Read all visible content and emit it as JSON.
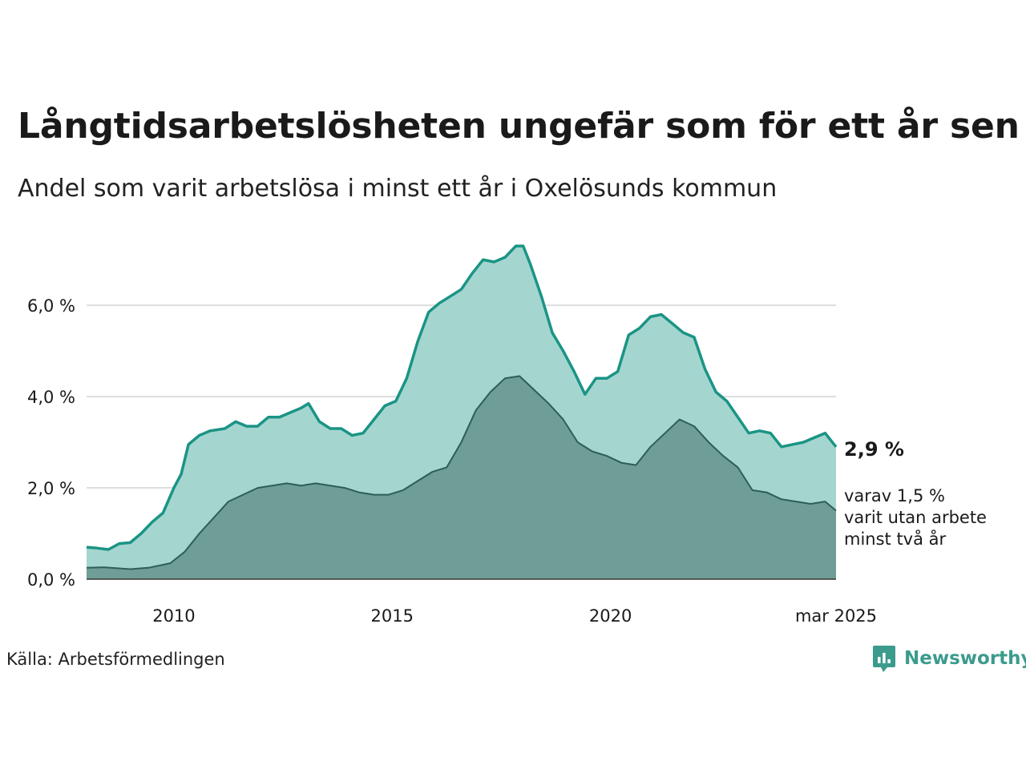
{
  "title": "Långtidsarbetslösheten ungefär som för ett år sen",
  "subtitle": "Andel som varit arbetslösa i minst ett år i Oxelösunds kommun",
  "source": "Källa: Arbetsförmedlingen",
  "brand": {
    "name": "Newsworthy",
    "icon": "newsworthy-logo-icon"
  },
  "colors": {
    "main_line": "#1a9485",
    "main_fill": "#a4d6cf",
    "sub_line": "#2e5e55",
    "sub_fill": "#6f9e96",
    "grid": "#dddddd",
    "text": "#1a1a1a"
  },
  "chart_data": {
    "type": "area",
    "x_start": "2008-01",
    "x_end": "2025-03",
    "frequency": "monthly",
    "ylim": [
      0,
      7.6
    ],
    "grid": "horizontal",
    "y_ticks": [
      {
        "value": 0,
        "label": "0,0 %"
      },
      {
        "value": 2,
        "label": "2,0 %"
      },
      {
        "value": 4,
        "label": "4,0 %"
      },
      {
        "value": 6,
        "label": "6,0 %"
      }
    ],
    "x_ticks": [
      {
        "date": "2010-01",
        "label": "2010"
      },
      {
        "date": "2015-01",
        "label": "2015"
      },
      {
        "date": "2020-01",
        "label": "2020"
      },
      {
        "date": "2025-03",
        "label": "mar 2025"
      }
    ],
    "series": [
      {
        "key": "total",
        "points": [
          [
            "2008-01",
            0.7
          ],
          [
            "2008-04",
            0.68
          ],
          [
            "2008-07",
            0.65
          ],
          [
            "2008-10",
            0.78
          ],
          [
            "2009-01",
            0.8
          ],
          [
            "2009-04",
            1.0
          ],
          [
            "2009-07",
            1.25
          ],
          [
            "2009-10",
            1.45
          ],
          [
            "2010-01",
            2.0
          ],
          [
            "2010-03",
            2.3
          ],
          [
            "2010-05",
            2.95
          ],
          [
            "2010-08",
            3.15
          ],
          [
            "2010-11",
            3.25
          ],
          [
            "2011-03",
            3.3
          ],
          [
            "2011-06",
            3.45
          ],
          [
            "2011-09",
            3.35
          ],
          [
            "2011-12",
            3.35
          ],
          [
            "2012-03",
            3.55
          ],
          [
            "2012-06",
            3.55
          ],
          [
            "2012-09",
            3.65
          ],
          [
            "2012-12",
            3.75
          ],
          [
            "2013-02",
            3.85
          ],
          [
            "2013-05",
            3.45
          ],
          [
            "2013-08",
            3.3
          ],
          [
            "2013-11",
            3.3
          ],
          [
            "2014-02",
            3.15
          ],
          [
            "2014-05",
            3.2
          ],
          [
            "2014-08",
            3.5
          ],
          [
            "2014-11",
            3.8
          ],
          [
            "2015-02",
            3.9
          ],
          [
            "2015-05",
            4.4
          ],
          [
            "2015-08",
            5.2
          ],
          [
            "2015-11",
            5.85
          ],
          [
            "2016-02",
            6.05
          ],
          [
            "2016-05",
            6.2
          ],
          [
            "2016-08",
            6.35
          ],
          [
            "2016-11",
            6.7
          ],
          [
            "2017-02",
            7.0
          ],
          [
            "2017-05",
            6.95
          ],
          [
            "2017-08",
            7.05
          ],
          [
            "2017-11",
            7.3
          ],
          [
            "2018-01",
            7.3
          ],
          [
            "2018-03",
            6.9
          ],
          [
            "2018-06",
            6.2
          ],
          [
            "2018-09",
            5.4
          ],
          [
            "2018-12",
            5.0
          ],
          [
            "2019-03",
            4.55
          ],
          [
            "2019-06",
            4.05
          ],
          [
            "2019-09",
            4.4
          ],
          [
            "2019-12",
            4.4
          ],
          [
            "2020-03",
            4.55
          ],
          [
            "2020-06",
            5.35
          ],
          [
            "2020-09",
            5.5
          ],
          [
            "2020-12",
            5.75
          ],
          [
            "2021-03",
            5.8
          ],
          [
            "2021-06",
            5.6
          ],
          [
            "2021-09",
            5.4
          ],
          [
            "2021-12",
            5.3
          ],
          [
            "2022-03",
            4.6
          ],
          [
            "2022-06",
            4.1
          ],
          [
            "2022-09",
            3.9
          ],
          [
            "2022-12",
            3.55
          ],
          [
            "2023-03",
            3.2
          ],
          [
            "2023-06",
            3.25
          ],
          [
            "2023-09",
            3.2
          ],
          [
            "2023-12",
            2.9
          ],
          [
            "2024-03",
            2.95
          ],
          [
            "2024-06",
            3.0
          ],
          [
            "2024-09",
            3.1
          ],
          [
            "2024-12",
            3.2
          ],
          [
            "2025-03",
            2.9
          ]
        ]
      },
      {
        "key": "two_years",
        "points": [
          [
            "2008-01",
            0.25
          ],
          [
            "2008-06",
            0.26
          ],
          [
            "2009-01",
            0.22
          ],
          [
            "2009-06",
            0.25
          ],
          [
            "2009-12",
            0.35
          ],
          [
            "2010-04",
            0.6
          ],
          [
            "2010-08",
            1.0
          ],
          [
            "2010-12",
            1.35
          ],
          [
            "2011-04",
            1.7
          ],
          [
            "2011-08",
            1.85
          ],
          [
            "2011-12",
            2.0
          ],
          [
            "2012-04",
            2.05
          ],
          [
            "2012-08",
            2.1
          ],
          [
            "2012-12",
            2.05
          ],
          [
            "2013-04",
            2.1
          ],
          [
            "2013-08",
            2.05
          ],
          [
            "2013-12",
            2.0
          ],
          [
            "2014-04",
            1.9
          ],
          [
            "2014-08",
            1.85
          ],
          [
            "2014-12",
            1.85
          ],
          [
            "2015-04",
            1.95
          ],
          [
            "2015-08",
            2.15
          ],
          [
            "2015-12",
            2.35
          ],
          [
            "2016-04",
            2.45
          ],
          [
            "2016-08",
            3.0
          ],
          [
            "2016-12",
            3.7
          ],
          [
            "2017-04",
            4.1
          ],
          [
            "2017-08",
            4.4
          ],
          [
            "2017-12",
            4.45
          ],
          [
            "2018-04",
            4.15
          ],
          [
            "2018-08",
            3.85
          ],
          [
            "2018-12",
            3.5
          ],
          [
            "2019-04",
            3.0
          ],
          [
            "2019-08",
            2.8
          ],
          [
            "2019-12",
            2.7
          ],
          [
            "2020-04",
            2.55
          ],
          [
            "2020-08",
            2.5
          ],
          [
            "2020-12",
            2.9
          ],
          [
            "2021-04",
            3.2
          ],
          [
            "2021-08",
            3.5
          ],
          [
            "2021-12",
            3.35
          ],
          [
            "2022-04",
            3.0
          ],
          [
            "2022-08",
            2.7
          ],
          [
            "2022-12",
            2.45
          ],
          [
            "2023-04",
            1.95
          ],
          [
            "2023-08",
            1.9
          ],
          [
            "2023-12",
            1.75
          ],
          [
            "2024-04",
            1.7
          ],
          [
            "2024-08",
            1.65
          ],
          [
            "2024-12",
            1.7
          ],
          [
            "2025-03",
            1.5
          ]
        ]
      }
    ],
    "annotations": {
      "latest_total": "2,9 %",
      "latest_sub_lines": [
        "varav 1,5 %",
        "varit utan arbete",
        "minst två år"
      ]
    }
  }
}
